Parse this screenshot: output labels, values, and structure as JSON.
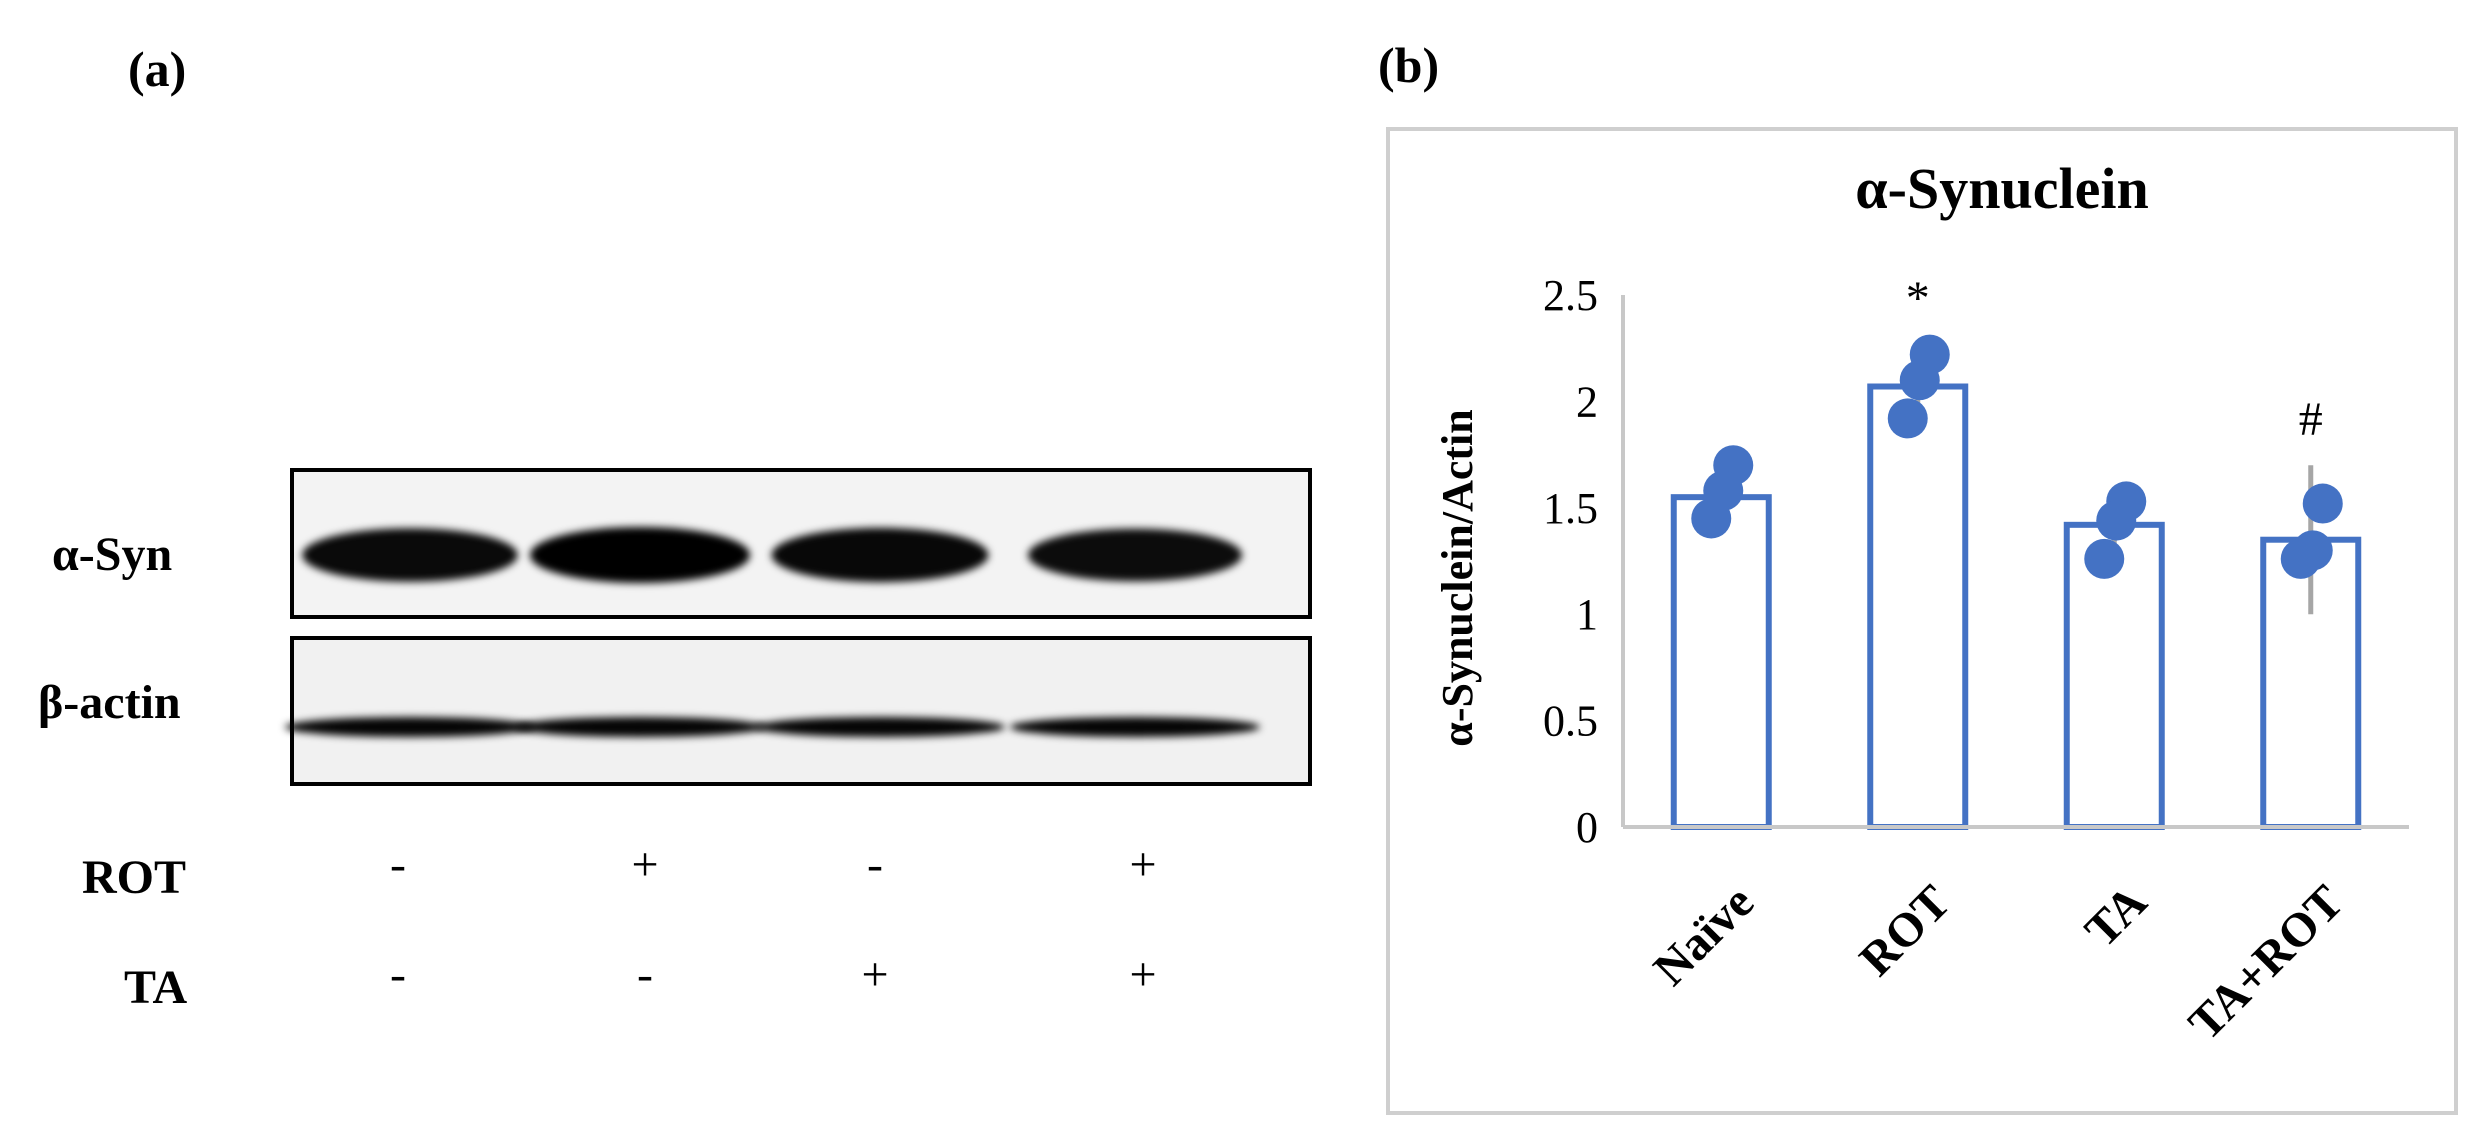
{
  "panel_a": {
    "label": "(a)",
    "rows": [
      "α-Syn",
      "β-actin"
    ],
    "treatments": [
      {
        "name": "ROT",
        "signs": [
          "-",
          "+",
          "-",
          "+"
        ]
      },
      {
        "name": "TA",
        "signs": [
          "-",
          "-",
          "+",
          "+"
        ]
      }
    ],
    "syn_intensity": [
      0.85,
      1.0,
      0.9,
      0.8
    ],
    "actin_intensity": [
      0.95,
      0.95,
      0.95,
      0.95
    ]
  },
  "panel_b": {
    "label": "(b)"
  },
  "chart_data": {
    "type": "bar",
    "title": "α-Synuclein",
    "ylabel": "α-Synuclein/Actin",
    "xlabel": "",
    "categories": [
      "Naïve",
      "ROT",
      "TA",
      "TA+ROT"
    ],
    "values": [
      1.55,
      2.07,
      1.42,
      1.35
    ],
    "error": [
      0.1,
      0.2,
      0.1,
      0.35
    ],
    "points": [
      [
        1.7,
        1.45,
        1.58
      ],
      [
        2.22,
        1.92,
        2.1
      ],
      [
        1.53,
        1.26,
        1.44
      ],
      [
        1.52,
        1.26,
        1.3
      ]
    ],
    "annotations": [
      "",
      "*",
      "",
      "#"
    ],
    "ylim": [
      0,
      2.5
    ],
    "yticks": [
      "0",
      "0.5",
      "1",
      "1.5",
      "2",
      "2.5"
    ],
    "bar_color": "#4472c4",
    "point_color": "#4472c4",
    "error_color": "#a6a6a6",
    "grid": false
  }
}
